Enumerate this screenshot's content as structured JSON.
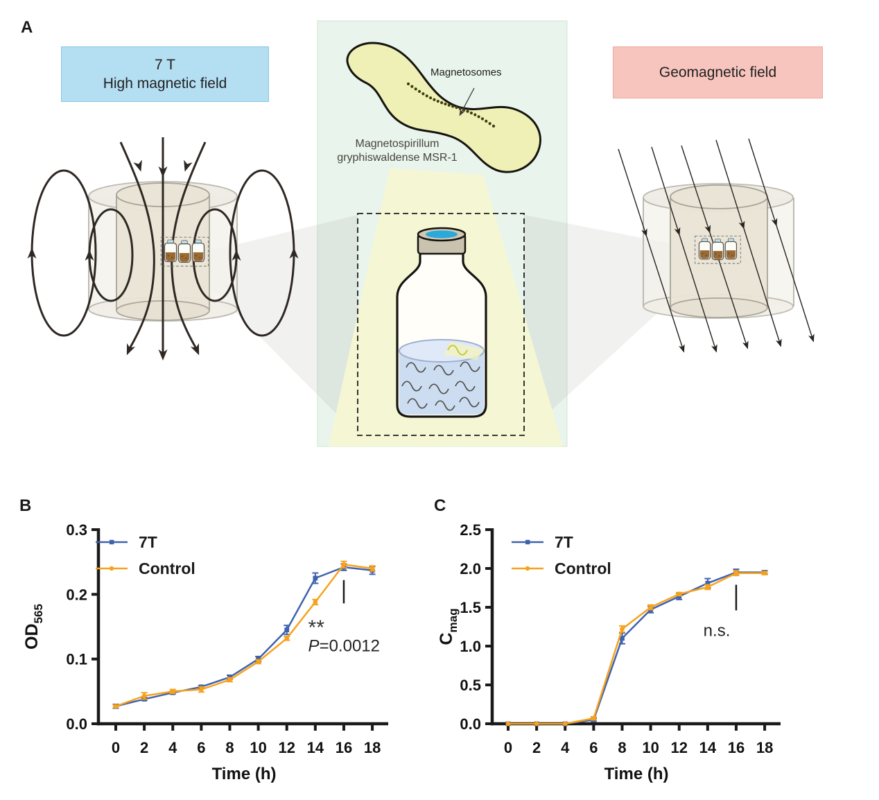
{
  "theme": {
    "box_blue_bg": "#b4def2",
    "box_blue_border": "#8cc5e1",
    "box_pink_bg": "#f7c5bd",
    "box_pink_border": "#e8a89e",
    "panel_green_bg": "#e9f4ec",
    "beam_yellow": "#f6f7d3",
    "cylinder_tan": "#e9e4d5",
    "liquid_blue": "#ccdcf1",
    "cap_cyan": "#2aa9da",
    "series_blue": "#3f62ae",
    "series_orange": "#f7a21b"
  },
  "figure": {
    "panel_a": {
      "label": "A",
      "left_box": {
        "line1": "7 T",
        "line2": "High magnetic field"
      },
      "right_box": {
        "label": "Geomagnetic field"
      },
      "center": {
        "magnetosomes_label": "Magnetosomes",
        "species_line1": "Magnetospirillum",
        "species_line2": "gryphiswaldense MSR-1"
      }
    },
    "panel_b": {
      "label": "B"
    },
    "panel_c": {
      "label": "C"
    }
  },
  "chart_data": [
    {
      "type": "line",
      "panel": "B",
      "xlabel": "Time (h)",
      "ylabel": "OD",
      "ylabel_sub": "565",
      "x": [
        0,
        2,
        4,
        6,
        8,
        10,
        12,
        14,
        16,
        18
      ],
      "xtick_labels": [
        "0",
        "2",
        "4",
        "6",
        "8",
        "10",
        "12",
        "14",
        "16",
        "18"
      ],
      "xlim": [
        0,
        18
      ],
      "ylim": [
        0,
        0.3
      ],
      "yticks": [
        0,
        0.1,
        0.2,
        0.3
      ],
      "ytick_labels": [
        "0.0",
        "0.1",
        "0.2",
        "0.3"
      ],
      "grid": false,
      "legend_position": "top-left",
      "series": [
        {
          "name": "7T",
          "color": "#3f62ae",
          "marker": "square",
          "values": [
            0.027,
            0.038,
            0.048,
            0.057,
            0.072,
            0.1,
            0.145,
            0.225,
            0.242,
            0.237
          ],
          "errors": [
            0.003,
            0.002,
            0.002,
            0.002,
            0.003,
            0.004,
            0.007,
            0.008,
            0.005,
            0.006
          ]
        },
        {
          "name": "Control",
          "color": "#f7a21b",
          "marker": "circle",
          "values": [
            0.027,
            0.043,
            0.05,
            0.053,
            0.068,
            0.096,
            0.132,
            0.188,
            0.246,
            0.24
          ],
          "errors": [
            0.002,
            0.005,
            0.003,
            0.004,
            0.003,
            0.003,
            0.003,
            0.004,
            0.005,
            0.004
          ]
        }
      ],
      "annotation": {
        "sig_x": 16,
        "sig_y_from": 0.186,
        "sig_y_to": 0.222,
        "stars": "**",
        "p_italic": "P",
        "p_rest": "=0.0012",
        "text_x": 13.5,
        "stars_y": 0.138,
        "p_y": 0.112
      }
    },
    {
      "type": "line",
      "panel": "C",
      "xlabel": "Time (h)",
      "ylabel": "C",
      "ylabel_sub": "mag",
      "x": [
        0,
        2,
        4,
        6,
        8,
        10,
        12,
        14,
        16,
        18
      ],
      "xtick_labels": [
        "0",
        "2",
        "4",
        "6",
        "8",
        "10",
        "12",
        "14",
        "16",
        "18"
      ],
      "xlim": [
        0,
        18
      ],
      "ylim": [
        0,
        2.5
      ],
      "yticks": [
        0,
        0.5,
        1.0,
        1.5,
        2.0,
        2.5
      ],
      "ytick_labels": [
        "0.0",
        "0.5",
        "1.0",
        "1.5",
        "2.0",
        "2.5"
      ],
      "grid": false,
      "legend_position": "top-left",
      "series": [
        {
          "name": "7T",
          "color": "#3f62ae",
          "marker": "square",
          "values": [
            0.0,
            0.0,
            0.0,
            0.05,
            1.1,
            1.47,
            1.64,
            1.81,
            1.95,
            1.95
          ],
          "errors": [
            0,
            0,
            0,
            0.02,
            0.07,
            0.04,
            0.04,
            0.06,
            0.04,
            0.02
          ]
        },
        {
          "name": "Control",
          "color": "#f7a21b",
          "marker": "circle",
          "values": [
            0.0,
            0.0,
            0.0,
            0.07,
            1.22,
            1.5,
            1.67,
            1.76,
            1.94,
            1.94
          ],
          "errors": [
            0,
            0,
            0,
            0.02,
            0.04,
            0.03,
            0.02,
            0.03,
            0.03,
            0.02
          ]
        }
      ],
      "annotation": {
        "sig_x": 16,
        "sig_y_from": 1.46,
        "sig_y_to": 1.79,
        "label": "n.s.",
        "text_x": 13.7,
        "label_y": 1.13
      }
    }
  ]
}
